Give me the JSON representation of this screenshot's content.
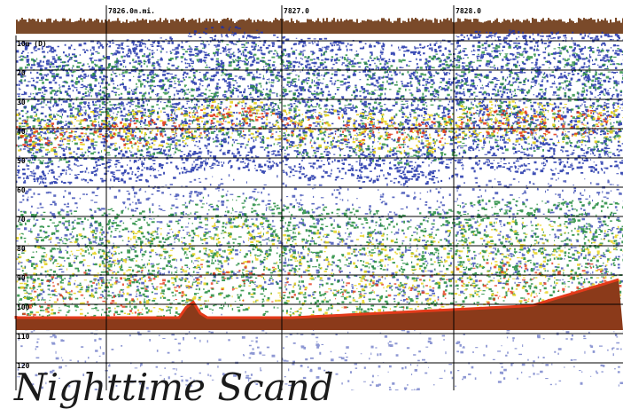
{
  "depth_unit_label": "10m (D)",
  "depth_ticks": [
    "20",
    "30",
    "40",
    "50",
    "60",
    "70",
    "80",
    "90",
    "100",
    "110",
    "120"
  ],
  "distance_marks": [
    "7826.0n.mi.",
    "7827.0",
    "7828.0"
  ],
  "caption": "Nighttime Scand",
  "colors": {
    "background": "#ffffff",
    "weak": "#1b2fa8",
    "medium": "#1f8a3a",
    "strong": "#e8d21c",
    "very_strong": "#e43a1a",
    "seabed": "#8b3a1a",
    "surface": "#7a4a2a"
  }
}
